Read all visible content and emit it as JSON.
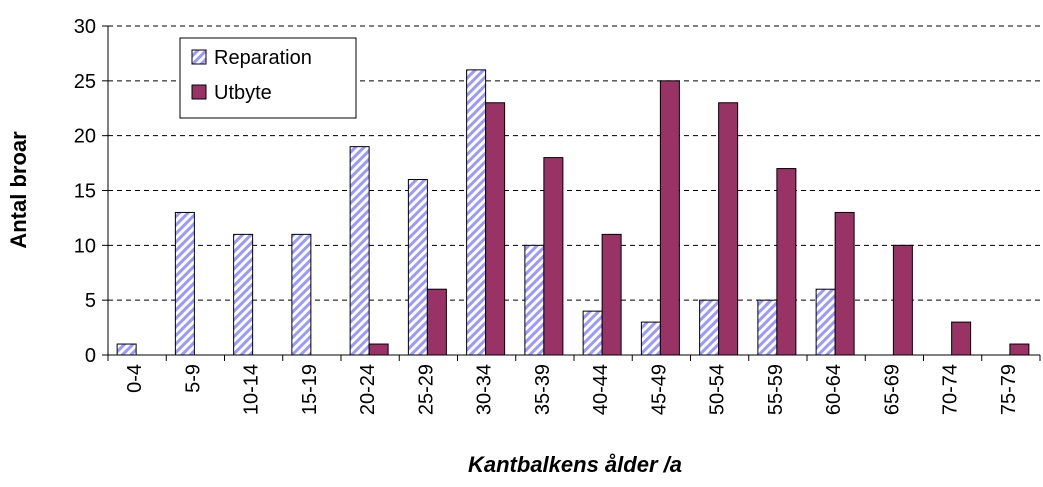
{
  "chart_data": {
    "type": "bar",
    "categories": [
      "0-4",
      "5-9",
      "10-14",
      "15-19",
      "20-24",
      "25-29",
      "30-34",
      "35-39",
      "40-44",
      "45-49",
      "50-54",
      "55-59",
      "60-64",
      "65-69",
      "70-74",
      "75-79"
    ],
    "series": [
      {
        "name": "Reparation",
        "color": "#9999ff",
        "hatch": true,
        "values": [
          1,
          13,
          11,
          11,
          19,
          16,
          26,
          10,
          4,
          3,
          5,
          5,
          6,
          0,
          0,
          0
        ]
      },
      {
        "name": "Utbyte",
        "color": "#993366",
        "hatch": false,
        "values": [
          0,
          0,
          0,
          0,
          1,
          6,
          23,
          18,
          11,
          25,
          23,
          17,
          13,
          10,
          3,
          1
        ]
      }
    ],
    "xlabel": "Kantbalkens ålder /a",
    "ylabel": "Antal broar",
    "ylim": [
      0,
      30
    ],
    "yticks": [
      0,
      5,
      10,
      15,
      20,
      25,
      30
    ],
    "grid": true,
    "legend": "upper left"
  }
}
